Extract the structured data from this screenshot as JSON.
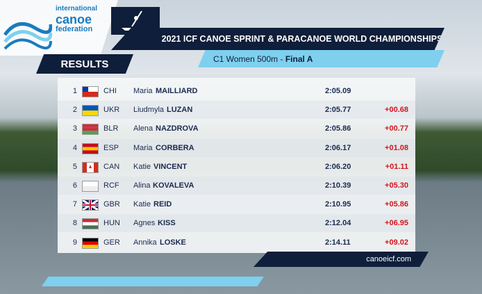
{
  "logo": {
    "line1": "international",
    "line2": "canoe",
    "line3": "federation"
  },
  "header": {
    "title": "2021 ICF CANOE SPRINT & PARACANOE WORLD CHAMPIONSHIPS",
    "event": "C1 Women 500m - ",
    "phase": "Final A",
    "section": "RESULTS"
  },
  "table": {
    "rows": [
      [
        "1",
        "CHI",
        "Maria",
        "MAILLIARD",
        "2:05.09",
        ""
      ],
      [
        "2",
        "UKR",
        "Liudmyla",
        "LUZAN",
        "2:05.77",
        "+00.68"
      ],
      [
        "3",
        "BLR",
        "Alena",
        "NAZDROVA",
        "2:05.86",
        "+00.77"
      ],
      [
        "4",
        "ESP",
        "Maria",
        "CORBERA",
        "2:06.17",
        "+01.08"
      ],
      [
        "5",
        "CAN",
        "Katie",
        "VINCENT",
        "2:06.20",
        "+01.11"
      ],
      [
        "6",
        "RCF",
        "Alina",
        "KOVALEVA",
        "2:10.39",
        "+05.30"
      ],
      [
        "7",
        "GBR",
        "Katie",
        "REID",
        "2:10.95",
        "+05.86"
      ],
      [
        "8",
        "HUN",
        "Agnes",
        "KISS",
        "2:12.04",
        "+06.95"
      ],
      [
        "9",
        "GER",
        "Annika",
        "LOSKE",
        "2:14.11",
        "+09.02"
      ]
    ]
  },
  "footer": {
    "site": "canoeicf.com"
  }
}
